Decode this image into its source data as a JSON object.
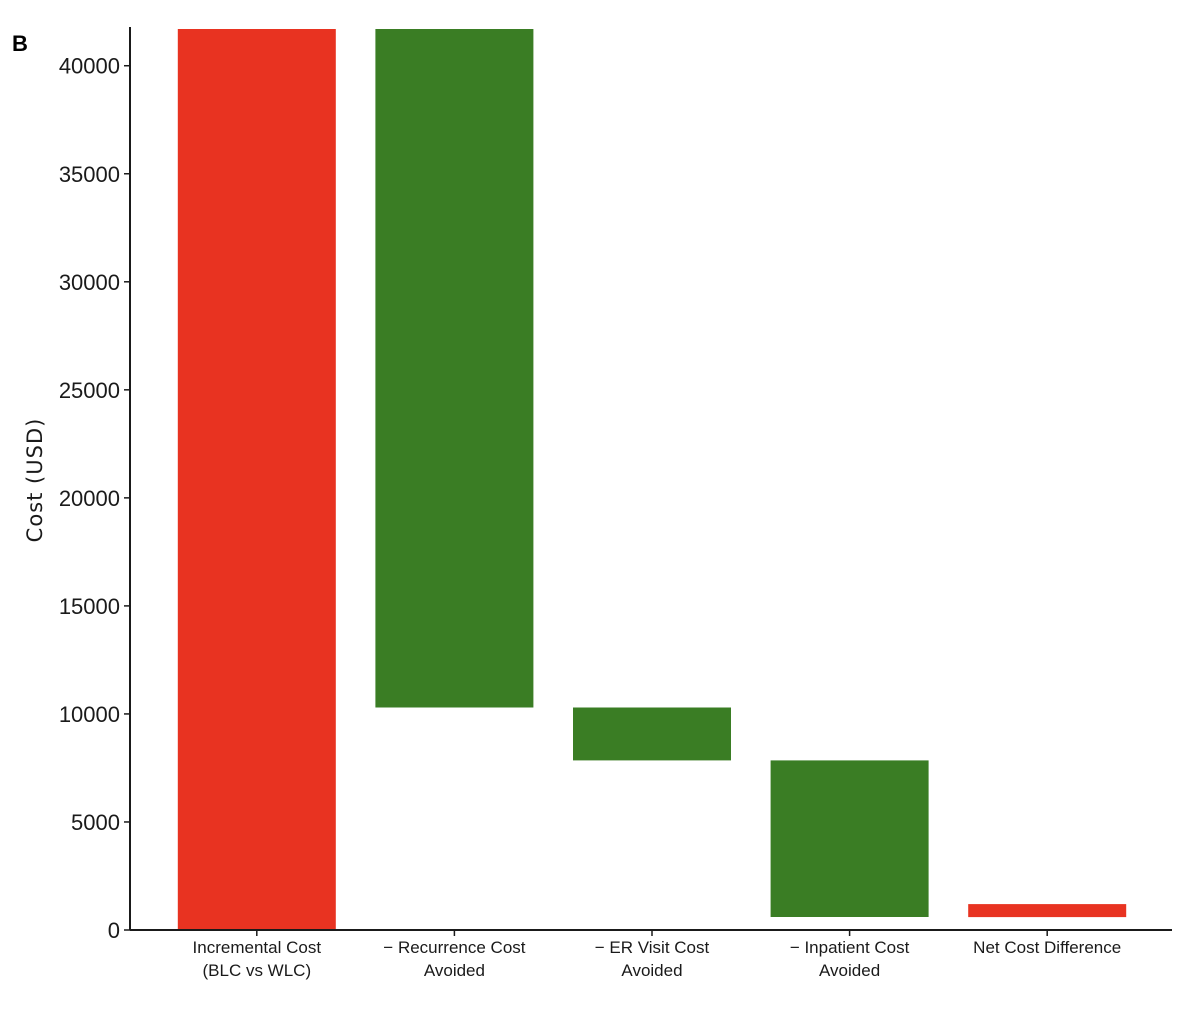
{
  "panel_label": "B",
  "chart_data": {
    "type": "bar",
    "subtype": "waterfall",
    "title": "",
    "xlabel": "",
    "ylabel": "Cost (USD)",
    "ylim": [
      0,
      41700
    ],
    "yticks": [
      0,
      5000,
      10000,
      15000,
      20000,
      25000,
      30000,
      35000,
      40000
    ],
    "grid": false,
    "categories": [
      [
        "Incremental Cost",
        "(BLC vs WLC)"
      ],
      [
        "− Recurrence Cost",
        "Avoided"
      ],
      [
        "− ER Visit Cost",
        "Avoided"
      ],
      [
        "− Inpatient Cost",
        "Avoided"
      ],
      [
        "Net Cost Difference"
      ]
    ],
    "bars": [
      {
        "bottom": 0,
        "top": 41700,
        "color": "#e83321"
      },
      {
        "bottom": 10300,
        "top": 41700,
        "color": "#3a7d24"
      },
      {
        "bottom": 7850,
        "top": 10300,
        "color": "#3a7d24"
      },
      {
        "bottom": 600,
        "top": 7850,
        "color": "#3a7d24"
      },
      {
        "bottom": 600,
        "top": 1200,
        "color": "#e83321"
      }
    ],
    "colors": {
      "increase": "#e83321",
      "decrease": "#3a7d24"
    }
  }
}
